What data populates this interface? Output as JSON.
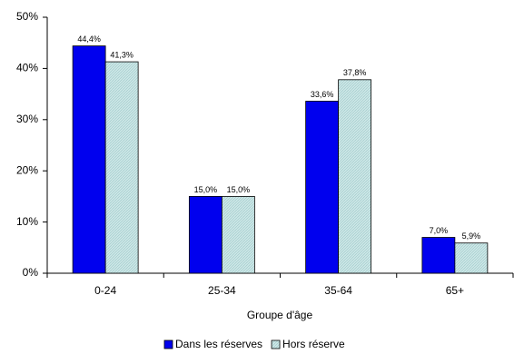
{
  "chart_data": {
    "type": "bar",
    "x_label": "Groupe d'âge",
    "categories": [
      "0-24",
      "25-34",
      "35-64",
      "65+"
    ],
    "series": [
      {
        "name": "Dans les réserves",
        "color": "#0000ee",
        "values": [
          44.4,
          15.0,
          33.6,
          7.0
        ],
        "value_labels": [
          "44,4%",
          "15,0%",
          "33,6%",
          "7,0%"
        ]
      },
      {
        "name": "Hors réserve",
        "color": "#cce6e6",
        "values": [
          41.3,
          15.0,
          37.8,
          5.9
        ],
        "value_labels": [
          "41,3%",
          "15,0%",
          "37,8%",
          "5,9%"
        ]
      }
    ],
    "ylim": [
      0,
      50
    ],
    "yticks": [
      {
        "value": 0,
        "label": "0%"
      },
      {
        "value": 10,
        "label": "10%"
      },
      {
        "value": 20,
        "label": "20%"
      },
      {
        "value": 30,
        "label": "30%"
      },
      {
        "value": 40,
        "label": "40%"
      },
      {
        "value": 50,
        "label": "50%"
      }
    ],
    "legend": "bottom"
  }
}
